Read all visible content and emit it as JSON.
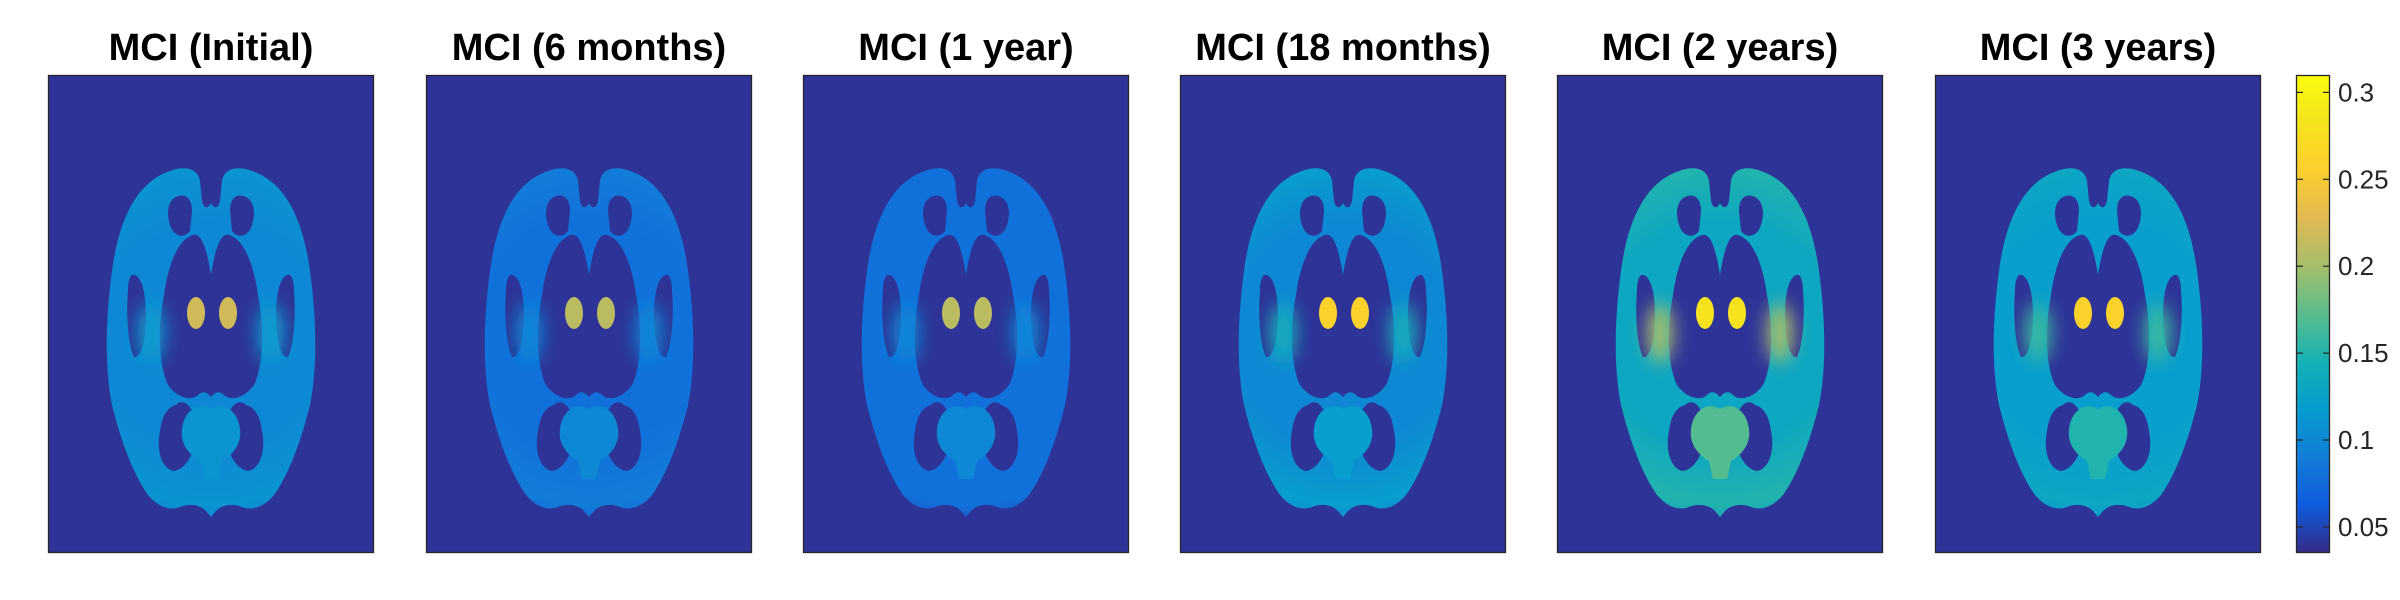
{
  "chart_data": [
    {
      "type": "heatmap",
      "title": "MCI (Initial)",
      "xlabel": "",
      "ylabel": "",
      "grid": false,
      "color_levels": {
        "background": 0.04,
        "white_matter": 0.1,
        "cortex_gradient": [
          0.09,
          0.11
        ],
        "temporal_lobes": 0.12,
        "occipital": 0.11,
        "deep_nuclei": 0.22
      }
    },
    {
      "type": "heatmap",
      "title": "MCI (6 months)",
      "xlabel": "",
      "ylabel": "",
      "grid": false,
      "color_levels": {
        "background": 0.04,
        "white_matter": 0.08,
        "cortex_gradient": [
          0.06,
          0.09
        ],
        "temporal_lobes": 0.1,
        "occipital": 0.1,
        "deep_nuclei": 0.21
      }
    },
    {
      "type": "heatmap",
      "title": "MCI (1 year)",
      "xlabel": "",
      "ylabel": "",
      "grid": false,
      "color_levels": {
        "background": 0.04,
        "white_matter": 0.08,
        "cortex_gradient": [
          0.05,
          0.08
        ],
        "temporal_lobes": 0.1,
        "occipital": 0.1,
        "deep_nuclei": 0.21
      }
    },
    {
      "type": "heatmap",
      "title": "MCI (18 months)",
      "xlabel": "",
      "ylabel": "",
      "grid": false,
      "color_levels": {
        "background": 0.04,
        "white_matter": 0.1,
        "cortex_gradient": [
          0.09,
          0.12
        ],
        "temporal_lobes": 0.14,
        "occipital": 0.12,
        "deep_nuclei": 0.26
      }
    },
    {
      "type": "heatmap",
      "title": "MCI (2 years)",
      "xlabel": "",
      "ylabel": "",
      "grid": false,
      "color_levels": {
        "background": 0.04,
        "white_matter": 0.13,
        "cortex_gradient": [
          0.12,
          0.15
        ],
        "temporal_lobes": 0.2,
        "occipital": 0.17,
        "deep_nuclei": 0.28
      }
    },
    {
      "type": "heatmap",
      "title": "MCI (3 years)",
      "xlabel": "",
      "ylabel": "",
      "grid": false,
      "color_levels": {
        "background": 0.04,
        "white_matter": 0.12,
        "cortex_gradient": [
          0.11,
          0.13
        ],
        "temporal_lobes": 0.16,
        "occipital": 0.15,
        "deep_nuclei": 0.26
      }
    }
  ],
  "colorbar": {
    "colormap": "parula",
    "range": [
      0.035,
      0.31
    ],
    "ticks": [
      0.05,
      0.1,
      0.15,
      0.2,
      0.25,
      0.3
    ],
    "tick_labels": [
      "0.05",
      "0.1",
      "0.15",
      "0.2",
      "0.25",
      "0.3"
    ]
  }
}
